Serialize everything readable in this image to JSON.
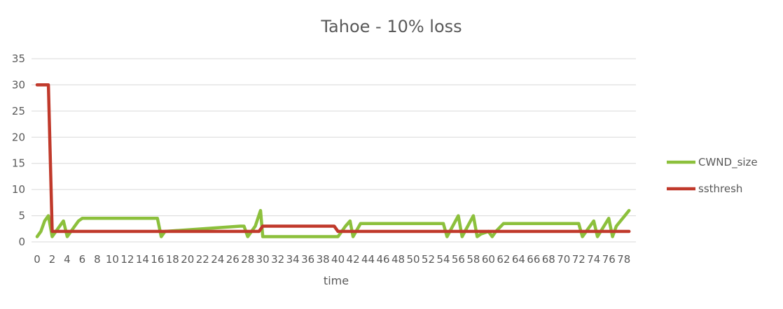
{
  "chart_data": {
    "type": "line",
    "title": "Tahoe - 10% loss",
    "xlabel": "time",
    "ylabel": "",
    "ylim": [
      0,
      35
    ],
    "yticks": [
      "0",
      "5",
      "10",
      "15",
      "20",
      "25",
      "30",
      "35"
    ],
    "xlim": [
      0,
      78
    ],
    "xticks": [
      "0",
      "2",
      "4",
      "6",
      "8",
      "10",
      "12",
      "14",
      "16",
      "18",
      "20",
      "22",
      "24",
      "26",
      "28",
      "30",
      "32",
      "34",
      "36",
      "38",
      "40",
      "42",
      "44",
      "46",
      "48",
      "50",
      "52",
      "54",
      "56",
      "58",
      "60",
      "62",
      "64",
      "66",
      "68",
      "70",
      "72",
      "74",
      "76",
      "78"
    ],
    "grid": "horizontal",
    "legend_position": "right",
    "series": [
      {
        "name": "CWND_size",
        "color": "#8cc03c",
        "x": [
          0,
          0.5,
          1,
          1.5,
          2,
          2.5,
          3,
          3.5,
          4,
          5,
          5.5,
          6,
          16,
          16.5,
          17,
          27,
          27.5,
          28,
          29,
          29.7,
          30,
          40,
          41,
          41.6,
          42,
          43,
          54,
          54.5,
          56,
          56.5,
          58,
          58.5,
          59,
          60,
          60.5,
          61,
          62,
          72,
          72.5,
          74,
          74.5,
          76,
          76.5,
          77,
          78.7
        ],
        "y": [
          1,
          2,
          4,
          5,
          1,
          2,
          3,
          4,
          1,
          3,
          4,
          4.5,
          4.5,
          1,
          2,
          3,
          3,
          1,
          3,
          6,
          1,
          1,
          3,
          4,
          1,
          3.5,
          3.5,
          1,
          5,
          1,
          5,
          1,
          1.5,
          2,
          1,
          2,
          3.5,
          3.5,
          1,
          4,
          1,
          4.5,
          1,
          3,
          6
        ]
      },
      {
        "name": "ssthresh",
        "color": "#c0392b",
        "x": [
          0,
          1.5,
          2,
          29.5,
          30,
          39.5,
          40,
          78.7
        ],
        "y": [
          30,
          30,
          2,
          2,
          3,
          3,
          2,
          2
        ]
      }
    ]
  }
}
